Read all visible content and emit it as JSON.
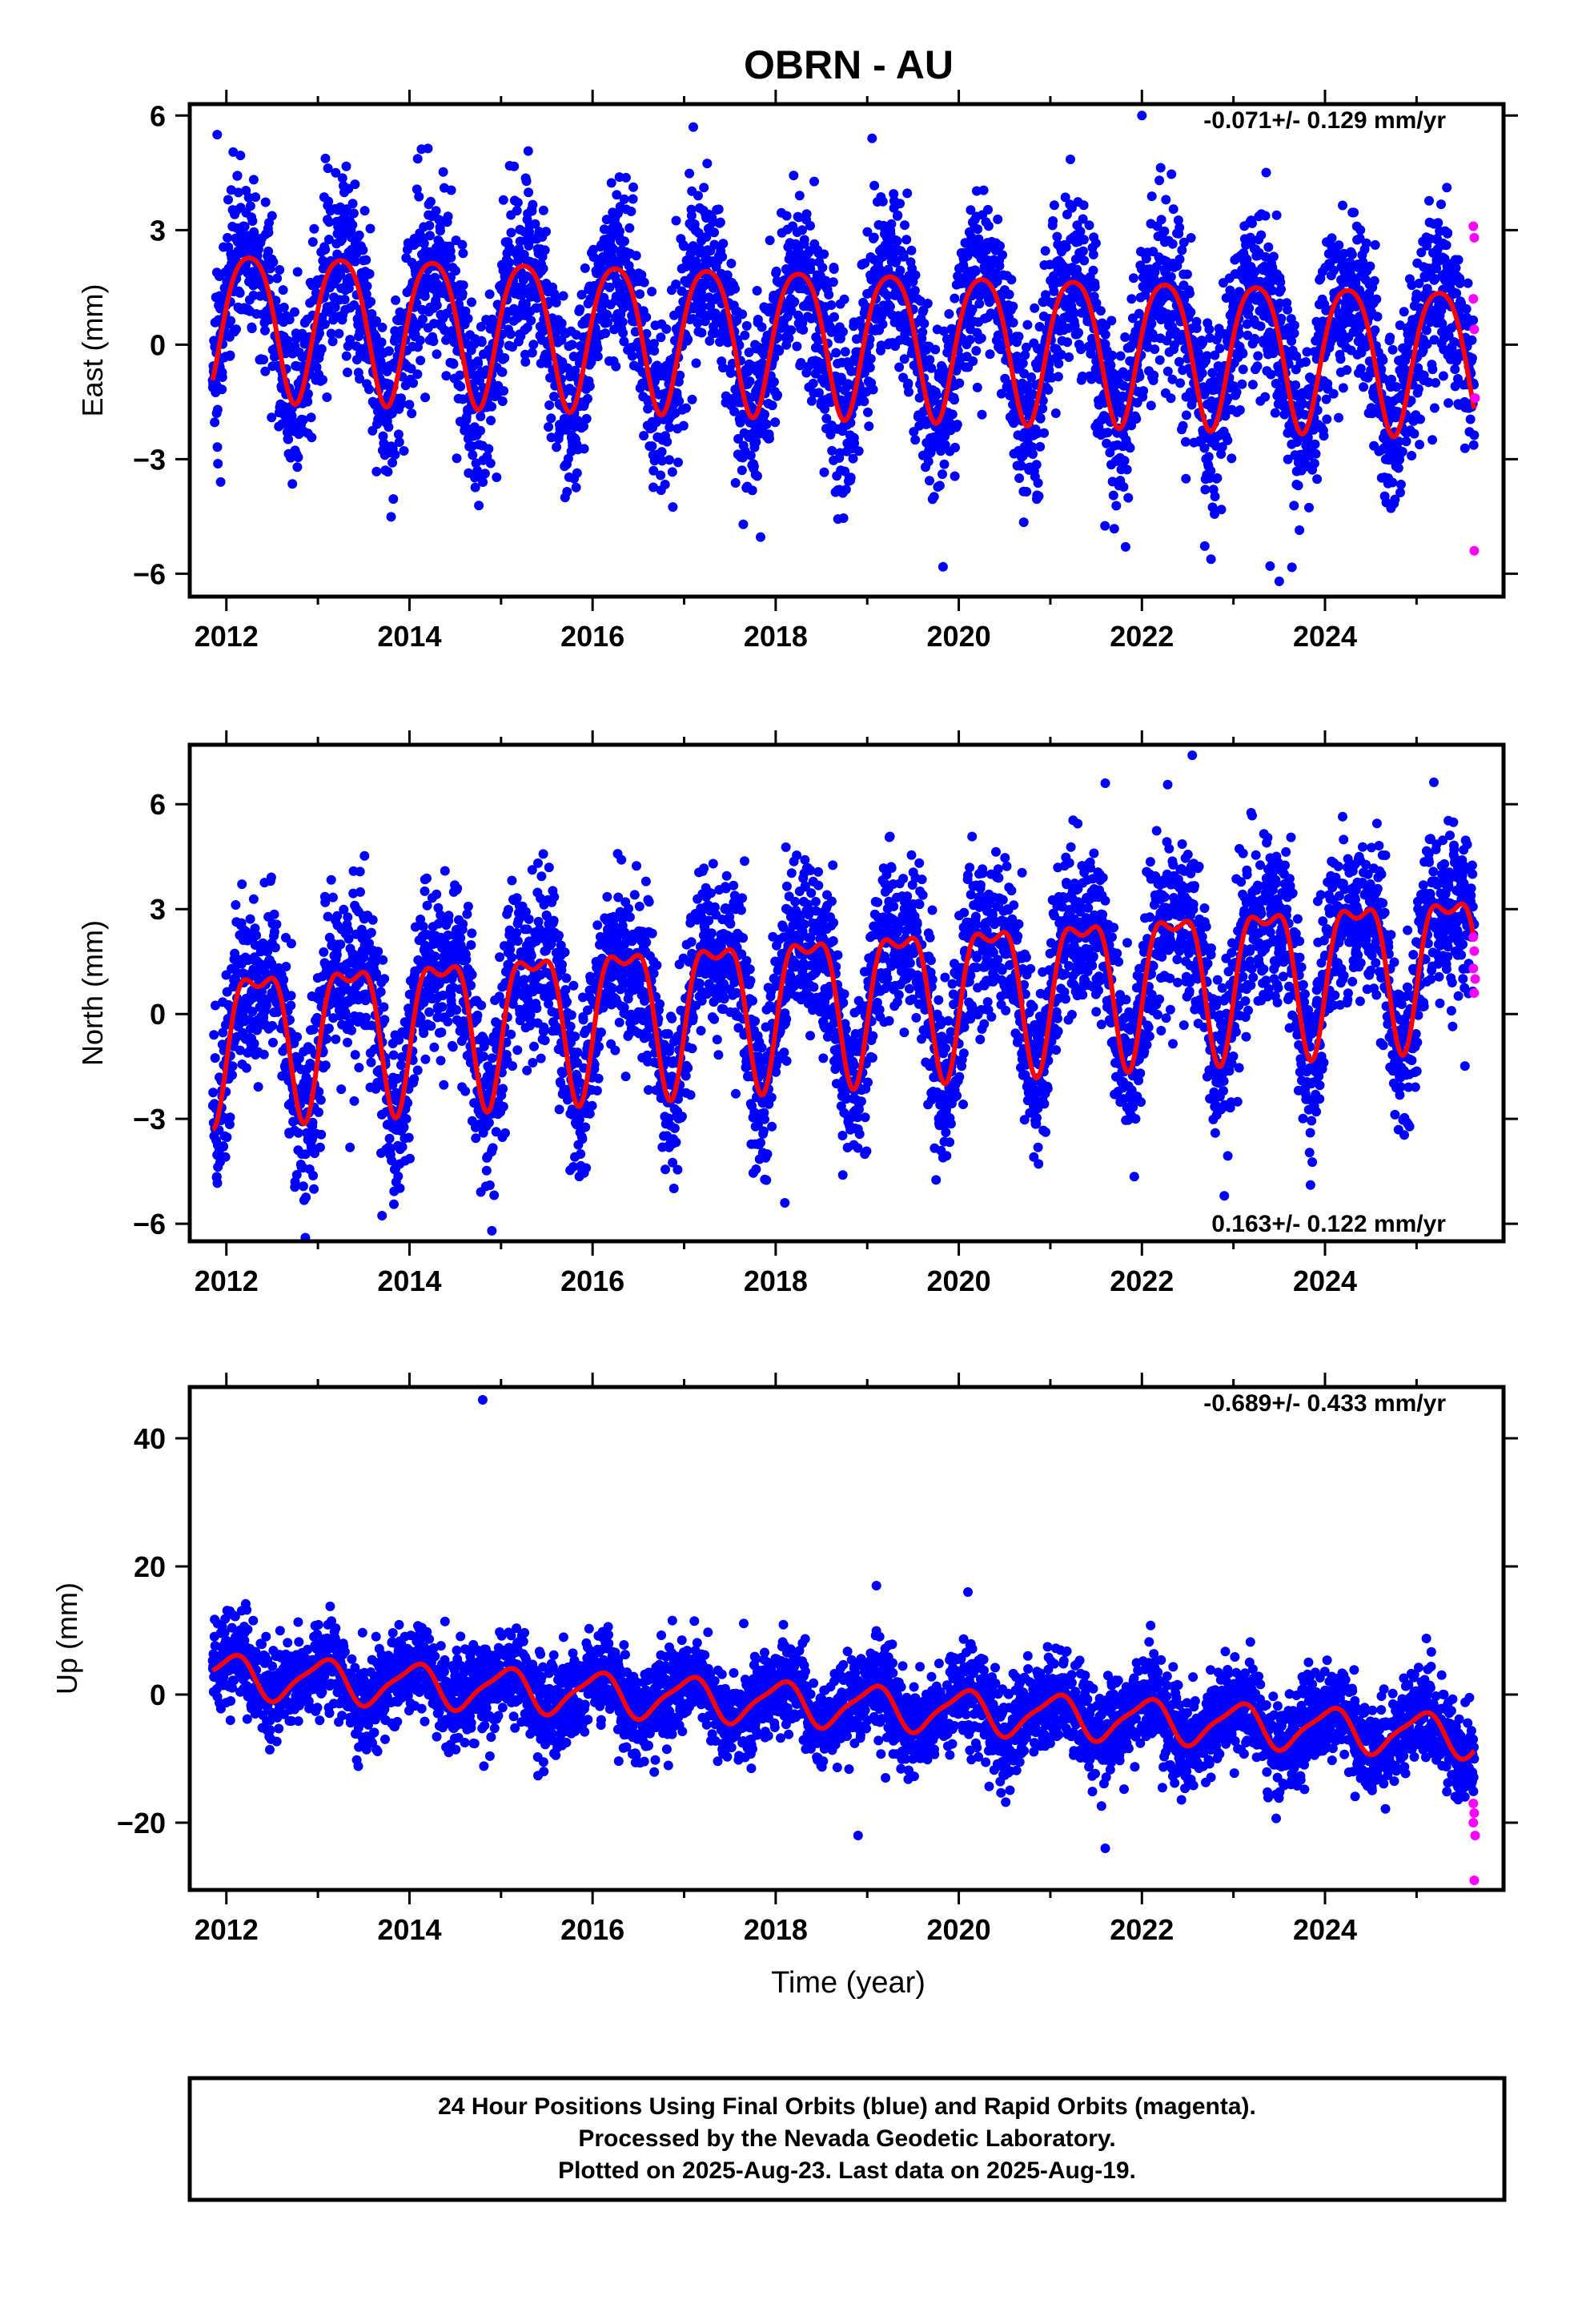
{
  "title": "OBRN - AU",
  "colors": {
    "final": "#0000ff",
    "rapid": "#ff00ff",
    "model": "#ff0000",
    "frame": "#000000"
  },
  "footer": {
    "line1": "24 Hour Positions Using Final Orbits (blue) and Rapid Orbits (magenta).",
    "line2": "Processed by the Nevada Geodetic Laboratory.",
    "line3": "Plotted on 2025-Aug-23. Last data on 2025-Aug-19."
  },
  "chart_data": [
    {
      "type": "scatter",
      "ylabel": "East (mm)",
      "xlabel": "",
      "xlim": [
        2011.6,
        2025.95
      ],
      "ylim": [
        -6.6,
        6.3
      ],
      "xticks": [
        2012,
        2014,
        2016,
        2018,
        2020,
        2022,
        2024
      ],
      "xtick_labels": [
        "2012",
        "2014",
        "2016",
        "2018",
        "2020",
        "2022",
        "2024"
      ],
      "yticks": [
        -6,
        -3,
        0,
        3,
        6
      ],
      "ytick_labels": [
        "−6",
        "−3",
        "0",
        "3",
        "6"
      ],
      "rate_text": "-0.071+/- 0.129 mm/yr",
      "rate_position": "top-right",
      "data_start": 2011.85,
      "data_end": 2025.63,
      "model": {
        "offset": 0.7,
        "trend": -0.071,
        "annual_amp": 1.9,
        "annual_phase": 0.25,
        "semiannual_amp": 0.3,
        "semiannual_phase": 0.0
      },
      "scatter_sd": 1.15,
      "outliers_final": [
        [
          2011.9,
          5.5
        ],
        [
          2022.0,
          6.0
        ],
        [
          2023.5,
          -6.2
        ],
        [
          2023.4,
          -5.8
        ],
        [
          2017.1,
          5.7
        ]
      ],
      "rapid_points": [
        [
          2025.62,
          3.1
        ],
        [
          2025.63,
          2.8
        ],
        [
          2025.62,
          1.2
        ],
        [
          2025.63,
          0.4
        ],
        [
          2025.64,
          -1.4
        ],
        [
          2025.63,
          -5.4
        ]
      ]
    },
    {
      "type": "scatter",
      "ylabel": "North (mm)",
      "xlabel": "",
      "xlim": [
        2011.6,
        2025.95
      ],
      "ylim": [
        -6.5,
        7.7
      ],
      "xticks": [
        2012,
        2014,
        2016,
        2018,
        2020,
        2022,
        2024
      ],
      "xtick_labels": [
        "2012",
        "2014",
        "2016",
        "2018",
        "2020",
        "2022",
        "2024"
      ],
      "yticks": [
        -6,
        -3,
        0,
        3,
        6
      ],
      "ytick_labels": [
        "−6",
        "−3",
        "0",
        "3",
        "6"
      ],
      "rate_text": "0.163+/- 0.122 mm/yr",
      "rate_position": "bottom-right",
      "data_start": 2011.85,
      "data_end": 2025.63,
      "model": {
        "offset": -0.5,
        "trend": 0.163,
        "annual_amp": 2.0,
        "annual_phase": 0.35,
        "semiannual_amp": 0.8,
        "semiannual_phase": 0.1
      },
      "scatter_sd": 1.2,
      "outliers_final": [
        [
          2022.55,
          7.4
        ],
        [
          2021.6,
          6.6
        ],
        [
          2014.9,
          -6.2
        ],
        [
          2018.1,
          -5.4
        ],
        [
          2022.9,
          -5.2
        ]
      ],
      "rapid_points": [
        [
          2025.62,
          2.2
        ],
        [
          2025.63,
          1.8
        ],
        [
          2025.62,
          1.3
        ],
        [
          2025.64,
          1.0
        ],
        [
          2025.63,
          0.6
        ]
      ]
    },
    {
      "type": "scatter",
      "ylabel": "Up (mm)",
      "xlabel": "Time (year)",
      "xlim": [
        2011.6,
        2025.95
      ],
      "ylim": [
        -30.5,
        48
      ],
      "xticks": [
        2012,
        2014,
        2016,
        2018,
        2020,
        2022,
        2024
      ],
      "xtick_labels": [
        "2012",
        "2014",
        "2016",
        "2018",
        "2020",
        "2022",
        "2024"
      ],
      "yticks": [
        -20,
        0,
        20,
        40
      ],
      "ytick_labels": [
        "−20",
        "0",
        "20",
        "40"
      ],
      "rate_text": "-0.689+/- 0.433 mm/yr",
      "rate_position": "top-right",
      "data_start": 2011.85,
      "data_end": 2025.63,
      "model": {
        "offset": 3.0,
        "trend": -0.689,
        "annual_amp": 3.2,
        "annual_phase": 0.05,
        "semiannual_amp": 0.8,
        "semiannual_phase": 0.2
      },
      "scatter_sd": 3.6,
      "outliers_final": [
        [
          2014.8,
          46
        ],
        [
          2018.9,
          -22
        ],
        [
          2019.2,
          -13
        ],
        [
          2021.6,
          -24
        ],
        [
          2019.1,
          17
        ],
        [
          2020.1,
          16
        ]
      ],
      "rapid_points": [
        [
          2025.62,
          -17
        ],
        [
          2025.63,
          -18.5
        ],
        [
          2025.62,
          -20
        ],
        [
          2025.64,
          -22
        ],
        [
          2025.63,
          -29
        ]
      ]
    }
  ]
}
